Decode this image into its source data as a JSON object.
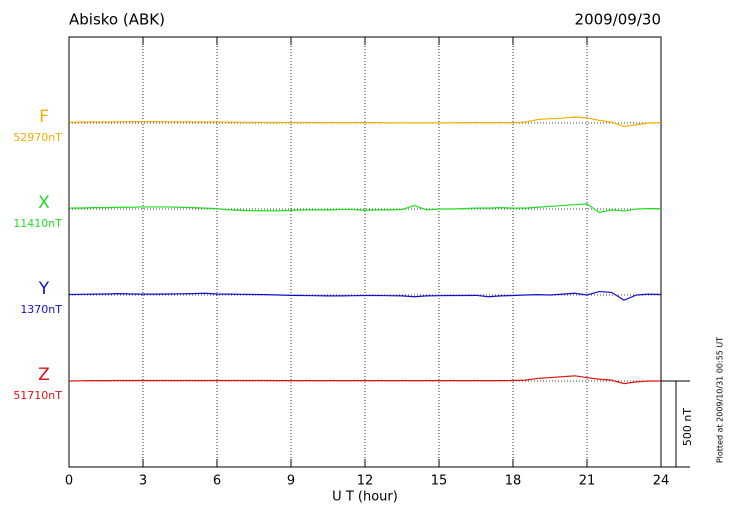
{
  "chart_data": {
    "type": "line",
    "title": "Abisko (ABK)",
    "date": "2009/09/30",
    "xlabel": "U T (hour)",
    "note": "Plotted at 2009/10/31 00:55 UT",
    "scale": {
      "value": 500,
      "label": "500 nT"
    },
    "xlim": [
      0,
      24
    ],
    "xticks": [
      0,
      3,
      6,
      9,
      12,
      15,
      18,
      21,
      24
    ],
    "grid": true,
    "x": [
      0,
      0.5,
      1,
      1.5,
      2,
      2.5,
      3,
      3.5,
      4,
      4.5,
      5,
      5.5,
      6,
      6.5,
      7,
      7.5,
      8,
      8.5,
      9,
      9.5,
      10,
      10.5,
      11,
      11.5,
      12,
      12.5,
      13,
      13.5,
      14,
      14.5,
      15,
      15.5,
      16,
      16.5,
      17,
      17.5,
      18,
      18.5,
      19,
      19.5,
      20,
      20.5,
      21,
      21.5,
      22,
      22.5,
      23,
      23.5,
      24
    ],
    "series": [
      {
        "name": "F",
        "color": "#f0b000",
        "baseline": {
          "value": 52970,
          "label": "52970nT"
        },
        "values": [
          52975,
          52975,
          52976,
          52976,
          52977,
          52978,
          52978,
          52978,
          52977,
          52977,
          52976,
          52976,
          52975,
          52975,
          52974,
          52974,
          52973,
          52973,
          52973,
          52973,
          52972,
          52972,
          52972,
          52972,
          52972,
          52972,
          52971,
          52971,
          52971,
          52971,
          52971,
          52971,
          52972,
          52972,
          52972,
          52972,
          52972,
          52975,
          52990,
          52995,
          52998,
          53005,
          53000,
          52985,
          52975,
          52950,
          52960,
          52970,
          52972
        ]
      },
      {
        "name": "X",
        "color": "#22dd22",
        "baseline": {
          "value": 11410,
          "label": "11410nT"
        },
        "values": [
          11415,
          11416,
          11418,
          11418,
          11420,
          11420,
          11422,
          11422,
          11422,
          11420,
          11418,
          11415,
          11412,
          11405,
          11402,
          11400,
          11400,
          11400,
          11402,
          11405,
          11405,
          11405,
          11407,
          11408,
          11402,
          11405,
          11405,
          11407,
          11430,
          11405,
          11410,
          11410,
          11412,
          11415,
          11415,
          11418,
          11415,
          11415,
          11420,
          11425,
          11430,
          11435,
          11440,
          11390,
          11405,
          11398,
          11410,
          11412,
          11412
        ]
      },
      {
        "name": "Y",
        "color": "#1010cc",
        "baseline": {
          "value": 1370,
          "label": "1370nT"
        },
        "values": [
          1373,
          1374,
          1375,
          1376,
          1378,
          1376,
          1375,
          1375,
          1376,
          1377,
          1378,
          1380,
          1376,
          1375,
          1374,
          1373,
          1372,
          1370,
          1368,
          1367,
          1366,
          1365,
          1365,
          1366,
          1367,
          1367,
          1366,
          1365,
          1360,
          1365,
          1366,
          1367,
          1367,
          1368,
          1360,
          1365,
          1367,
          1370,
          1372,
          1370,
          1375,
          1380,
          1370,
          1390,
          1385,
          1340,
          1370,
          1375,
          1373
        ]
      },
      {
        "name": "Z",
        "color": "#dd1111",
        "baseline": {
          "value": 51710,
          "label": "51710nT"
        },
        "values": [
          51710,
          51711,
          51712,
          51712,
          51713,
          51713,
          51713,
          51713,
          51713,
          51713,
          51713,
          51713,
          51713,
          51713,
          51713,
          51713,
          51713,
          51712,
          51712,
          51712,
          51712,
          51712,
          51712,
          51712,
          51712,
          51712,
          51712,
          51712,
          51712,
          51712,
          51712,
          51712,
          51712,
          51712,
          51712,
          51712,
          51713,
          51715,
          51725,
          51730,
          51735,
          51740,
          51730,
          51720,
          51715,
          51695,
          51705,
          51710,
          51710
        ]
      }
    ]
  }
}
